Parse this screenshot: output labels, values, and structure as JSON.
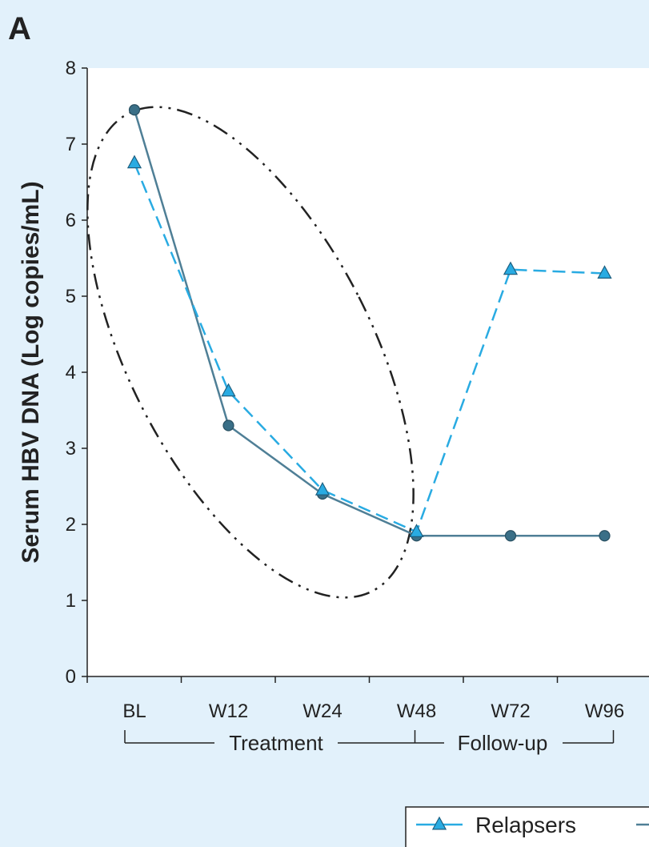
{
  "panel_label": "A",
  "chart_data": {
    "type": "line",
    "ylabel": "Serum HBV DNA (Log copies/mL)",
    "xlabel": "",
    "ylim": [
      0,
      8
    ],
    "yticks": [
      "0",
      "1",
      "2",
      "3",
      "4",
      "5",
      "6",
      "7",
      "8"
    ],
    "categories": [
      "BL",
      "W12",
      "W24",
      "W48",
      "W72",
      "W96"
    ],
    "groups": [
      {
        "label": "Treatment",
        "from": "BL",
        "to": "W48"
      },
      {
        "label": "Follow-up",
        "to": "W96"
      }
    ],
    "series": [
      {
        "name": "Relapsers",
        "color": "#29abe2",
        "line_style": "dashed",
        "marker": "triangle",
        "marker_color": "#29abe2",
        "values": [
          6.75,
          3.75,
          2.45,
          1.9,
          5.35,
          5.3
        ]
      },
      {
        "color": "#4f7f96",
        "line_style": "solid",
        "marker": "circle",
        "marker_color": "#3a6f87",
        "values": [
          7.45,
          3.3,
          2.4,
          1.85,
          1.85,
          1.85
        ]
      }
    ],
    "annotation": {
      "shape": "dash-dot ellipse",
      "encloses": [
        "BL",
        "W12",
        "W24",
        "W48"
      ]
    },
    "grid": false,
    "legend_position": "bottom-right"
  }
}
